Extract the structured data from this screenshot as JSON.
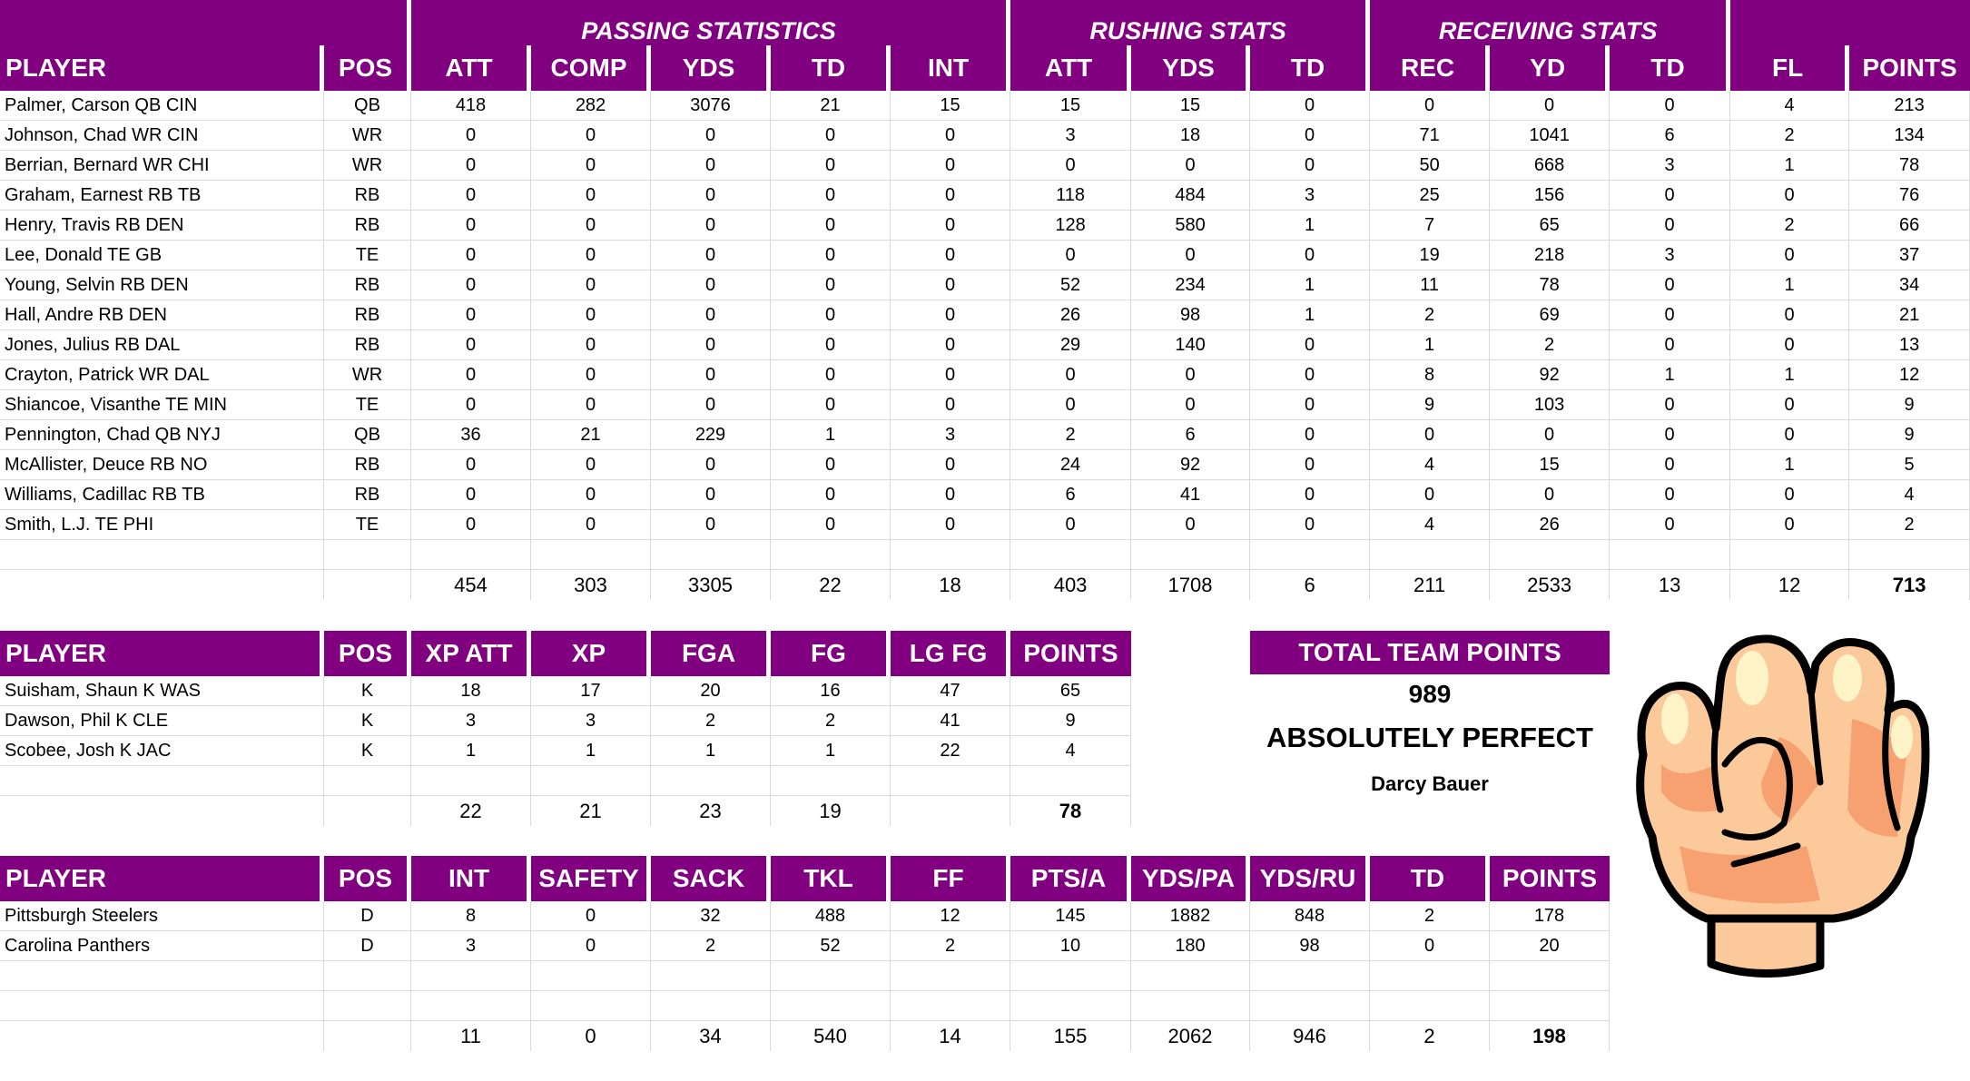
{
  "colors": {
    "header_purple": "#800080",
    "grid": "#d9d9d9"
  },
  "offense": {
    "groups": [
      "",
      "PASSING STATISTICS",
      "RUSHING STATS",
      "RECEIVING STATS",
      ""
    ],
    "columns": [
      "PLAYER",
      "POS",
      "ATT",
      "COMP",
      "YDS",
      "TD",
      "INT",
      "ATT",
      "YDS",
      "TD",
      "REC",
      "YD",
      "TD",
      "FL",
      "POINTS"
    ],
    "rows": [
      [
        "Palmer, Carson QB CIN",
        "QB",
        "418",
        "282",
        "3076",
        "21",
        "15",
        "15",
        "15",
        "0",
        "0",
        "0",
        "0",
        "4",
        "213"
      ],
      [
        "Johnson, Chad WR CIN",
        "WR",
        "0",
        "0",
        "0",
        "0",
        "0",
        "3",
        "18",
        "0",
        "71",
        "1041",
        "6",
        "2",
        "134"
      ],
      [
        "Berrian, Bernard WR CHI",
        "WR",
        "0",
        "0",
        "0",
        "0",
        "0",
        "0",
        "0",
        "0",
        "50",
        "668",
        "3",
        "1",
        "78"
      ],
      [
        "Graham, Earnest RB TB",
        "RB",
        "0",
        "0",
        "0",
        "0",
        "0",
        "118",
        "484",
        "3",
        "25",
        "156",
        "0",
        "0",
        "76"
      ],
      [
        "Henry, Travis RB DEN",
        "RB",
        "0",
        "0",
        "0",
        "0",
        "0",
        "128",
        "580",
        "1",
        "7",
        "65",
        "0",
        "2",
        "66"
      ],
      [
        "Lee, Donald TE GB",
        "TE",
        "0",
        "0",
        "0",
        "0",
        "0",
        "0",
        "0",
        "0",
        "19",
        "218",
        "3",
        "0",
        "37"
      ],
      [
        "Young, Selvin RB DEN",
        "RB",
        "0",
        "0",
        "0",
        "0",
        "0",
        "52",
        "234",
        "1",
        "11",
        "78",
        "0",
        "1",
        "34"
      ],
      [
        "Hall, Andre RB DEN",
        "RB",
        "0",
        "0",
        "0",
        "0",
        "0",
        "26",
        "98",
        "1",
        "2",
        "69",
        "0",
        "0",
        "21"
      ],
      [
        "Jones, Julius RB DAL",
        "RB",
        "0",
        "0",
        "0",
        "0",
        "0",
        "29",
        "140",
        "0",
        "1",
        "2",
        "0",
        "0",
        "13"
      ],
      [
        "Crayton, Patrick WR DAL",
        "WR",
        "0",
        "0",
        "0",
        "0",
        "0",
        "0",
        "0",
        "0",
        "8",
        "92",
        "1",
        "1",
        "12"
      ],
      [
        "Shiancoe, Visanthe TE MIN",
        "TE",
        "0",
        "0",
        "0",
        "0",
        "0",
        "0",
        "0",
        "0",
        "9",
        "103",
        "0",
        "0",
        "9"
      ],
      [
        "Pennington, Chad QB NYJ",
        "QB",
        "36",
        "21",
        "229",
        "1",
        "3",
        "2",
        "6",
        "0",
        "0",
        "0",
        "0",
        "0",
        "9"
      ],
      [
        "McAllister, Deuce RB NO",
        "RB",
        "0",
        "0",
        "0",
        "0",
        "0",
        "24",
        "92",
        "0",
        "4",
        "15",
        "0",
        "1",
        "5"
      ],
      [
        "Williams, Cadillac RB TB",
        "RB",
        "0",
        "0",
        "0",
        "0",
        "0",
        "6",
        "41",
        "0",
        "0",
        "0",
        "0",
        "0",
        "4"
      ],
      [
        "Smith, L.J. TE PHI",
        "TE",
        "0",
        "0",
        "0",
        "0",
        "0",
        "0",
        "0",
        "0",
        "4",
        "26",
        "0",
        "0",
        "2"
      ]
    ],
    "totals": [
      "",
      "",
      "454",
      "303",
      "3305",
      "22",
      "18",
      "403",
      "1708",
      "6",
      "211",
      "2533",
      "13",
      "12",
      "713"
    ]
  },
  "kickers": {
    "columns": [
      "PLAYER",
      "POS",
      "XP ATT",
      "XP",
      "FGA",
      "FG",
      "LG FG",
      "POINTS"
    ],
    "rows": [
      [
        "Suisham, Shaun K WAS",
        "K",
        "18",
        "17",
        "20",
        "16",
        "47",
        "65"
      ],
      [
        "Dawson, Phil K CLE",
        "K",
        "3",
        "3",
        "2",
        "2",
        "41",
        "9"
      ],
      [
        "Scobee, Josh K JAC",
        "K",
        "1",
        "1",
        "1",
        "1",
        "22",
        "4"
      ]
    ],
    "totals": [
      "",
      "",
      "22",
      "21",
      "23",
      "19",
      "",
      "78"
    ]
  },
  "defense": {
    "columns": [
      "PLAYER",
      "POS",
      "INT",
      "SAFETY",
      "SACK",
      "TKL",
      "FF",
      "PTS/A",
      "YDS/PA",
      "YDS/RU",
      "TD",
      "POINTS"
    ],
    "rows": [
      [
        "Pittsburgh Steelers",
        "D",
        "8",
        "0",
        "32",
        "488",
        "12",
        "145",
        "1882",
        "848",
        "2",
        "178"
      ],
      [
        "Carolina Panthers",
        "D",
        "3",
        "0",
        "2",
        "52",
        "2",
        "10",
        "180",
        "98",
        "0",
        "20"
      ],
      [
        "",
        "",
        "",
        "",
        "",
        "",
        "",
        "",
        "",
        "",
        "",
        ""
      ]
    ],
    "totals": [
      "",
      "",
      "11",
      "0",
      "34",
      "540",
      "14",
      "155",
      "2062",
      "946",
      "2",
      "198"
    ]
  },
  "summary": {
    "title": "TOTAL TEAM POINTS",
    "value": "989",
    "rating": "ABSOLUTELY PERFECT",
    "owner": "Darcy Bauer"
  },
  "image": {
    "icon": "raised-fist-icon"
  }
}
